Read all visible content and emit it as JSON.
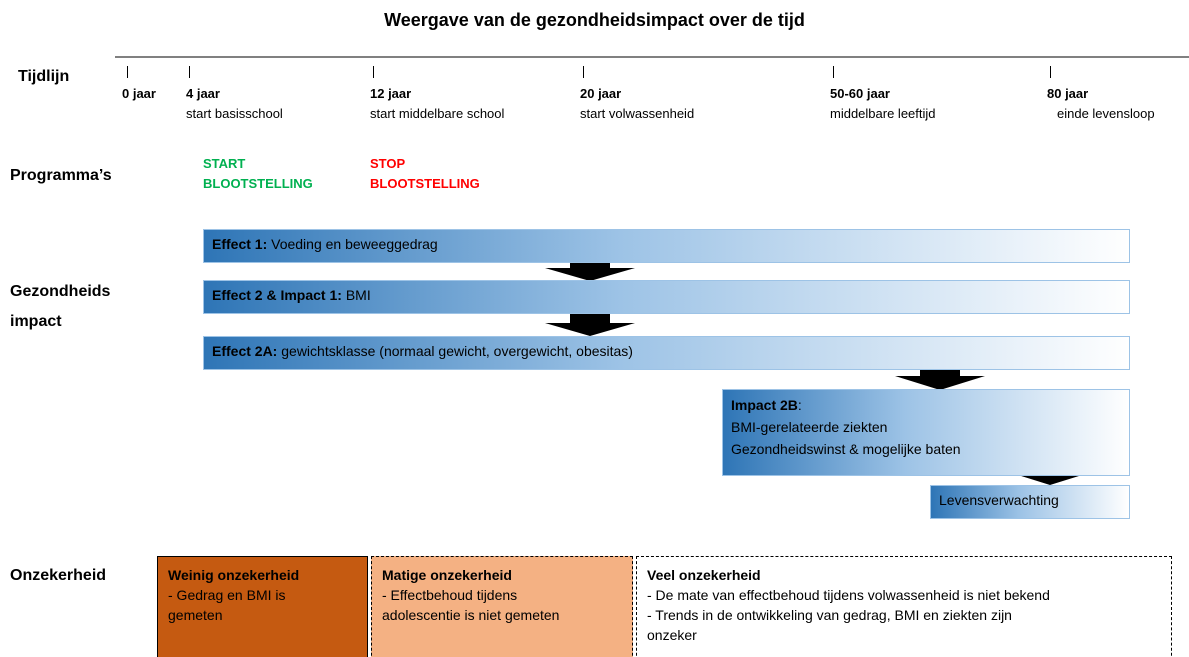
{
  "title": "Weergave van de gezondheidsimpact over de tijd",
  "timeline": {
    "label": "Tijdlijn",
    "points": [
      {
        "age": "0 jaar"
      },
      {
        "age": "4 jaar",
        "description": "start basisschool"
      },
      {
        "age": "12 jaar",
        "description": "start middelbare school"
      },
      {
        "age": "20 jaar",
        "description": "start volwassenheid"
      },
      {
        "age": "50-60 jaar",
        "description": "middelbare leeftijd"
      },
      {
        "age": "80 jaar",
        "description": "einde levensloop"
      }
    ]
  },
  "programs": {
    "label": "Programma’s",
    "start": [
      "START",
      "BLOOTSTELLING"
    ],
    "stop": [
      "STOP",
      "BLOOTSTELLING"
    ]
  },
  "impact": {
    "label": [
      "Gezondheids",
      "impact"
    ],
    "boxes": [
      {
        "bold": "Effect 1:",
        "text": " Voeding en beweeggedrag"
      },
      {
        "bold": "Effect 2 & Impact 1:",
        "text": " BMI"
      },
      {
        "bold": "Effect 2A:",
        "text": " gewichtsklasse (normaal gewicht, overgewicht, obesitas)"
      },
      {
        "bold": "Impact 2B",
        "text": ":",
        "lines": [
          "BMI-gerelateerde ziekten",
          "Gezondheidswinst & mogelijke baten"
        ]
      },
      {
        "text": "Levensverwachting"
      }
    ]
  },
  "uncertainty": {
    "label": "Onzekerheid",
    "boxes": [
      {
        "title": "Weinig onzekerheid",
        "lines": [
          "- Gedrag en BMI is",
          "gemeten"
        ]
      },
      {
        "title": "Matige onzekerheid",
        "lines": [
          "- Effectbehoud  tijdens",
          "adolescentie  is niet gemeten"
        ]
      },
      {
        "title": "Veel onzekerheid",
        "lines": [
          "- De mate van effectbehoud  tijdens volwassenheid  is niet bekend",
          "- Trends in de ontwikkeling van gedrag, BMI en ziekten zijn",
          "onzeker"
        ]
      }
    ]
  }
}
